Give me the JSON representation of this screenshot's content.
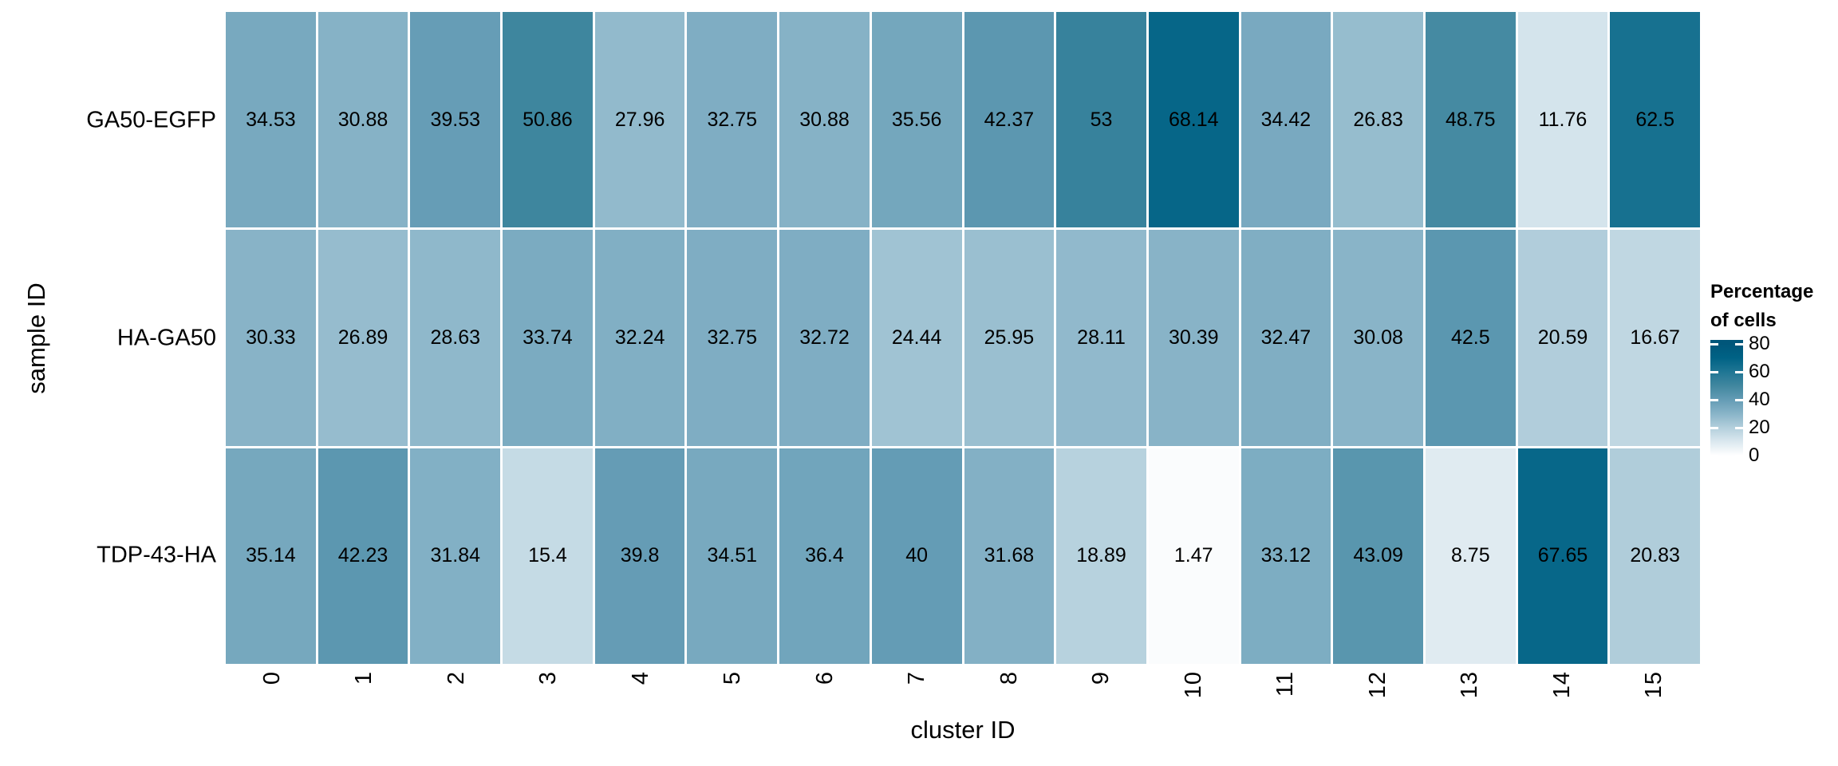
{
  "chart_data": {
    "type": "heatmap",
    "xlabel": "cluster ID",
    "ylabel": "sample ID",
    "x_categories": [
      "0",
      "1",
      "2",
      "3",
      "4",
      "5",
      "6",
      "7",
      "8",
      "9",
      "10",
      "11",
      "12",
      "13",
      "14",
      "15"
    ],
    "y_categories": [
      "GA50-EGFP",
      "HA-GA50",
      "TDP-43-HA"
    ],
    "values": [
      [
        34.53,
        30.88,
        39.53,
        50.86,
        27.96,
        32.75,
        30.88,
        35.56,
        42.37,
        53,
        68.14,
        34.42,
        26.83,
        48.75,
        11.76,
        62.5
      ],
      [
        30.33,
        26.89,
        28.63,
        33.74,
        32.24,
        32.75,
        32.72,
        24.44,
        25.95,
        28.11,
        30.39,
        32.47,
        30.08,
        42.5,
        20.59,
        16.67
      ],
      [
        35.14,
        42.23,
        31.84,
        15.4,
        39.8,
        34.51,
        36.4,
        40,
        31.68,
        18.89,
        1.47,
        33.12,
        43.09,
        8.75,
        67.65,
        20.83
      ]
    ],
    "grid": "off",
    "cell_value_labels": "on",
    "legend": {
      "position": "right",
      "title": "Percentage of cells",
      "title_lines": [
        "Percentage",
        "of cells"
      ],
      "ticks": [
        "80",
        "60",
        "40",
        "20",
        "0"
      ],
      "range": [
        0,
        80
      ]
    },
    "colorscale": {
      "description": "white to dark teal-blue",
      "stops": [
        {
          "v": 0,
          "c": "#ffffff"
        },
        {
          "v": 10,
          "c": "#dbe8ef"
        },
        {
          "v": 20,
          "c": "#b3cfdc"
        },
        {
          "v": 30,
          "c": "#89b4c8"
        },
        {
          "v": 40,
          "c": "#649cb5"
        },
        {
          "v": 50,
          "c": "#41879f"
        },
        {
          "v": 60,
          "c": "#1f7694"
        },
        {
          "v": 70,
          "c": "#006285"
        },
        {
          "v": 80,
          "c": "#00567a"
        }
      ],
      "text_color": "#000000"
    }
  }
}
